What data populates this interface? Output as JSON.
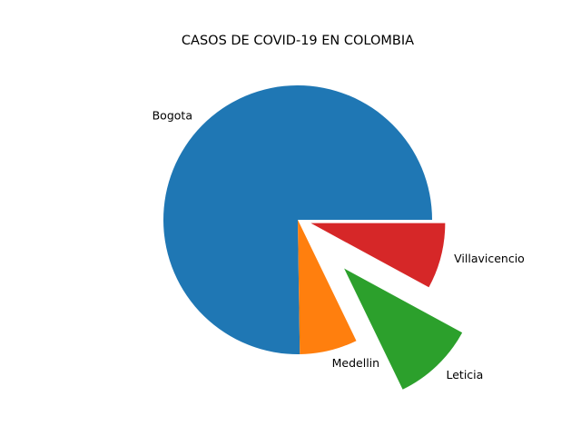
{
  "chart_data": {
    "type": "pie",
    "title": "CASOS DE COVID-19 EN COLOMBIA",
    "start_angle_deg": 0,
    "direction": "counterclockwise",
    "slices": [
      {
        "label": "Bogota",
        "value": 7600,
        "color": "#1f77b4",
        "explode": 0.0
      },
      {
        "label": "Medellin",
        "value": 700,
        "color": "#ff7f0e",
        "explode": 0.0
      },
      {
        "label": "Leticia",
        "value": 1000,
        "color": "#2ca02c",
        "explode": 0.5
      },
      {
        "label": "Villavicencio",
        "value": 800,
        "color": "#d62728",
        "explode": 0.1
      }
    ]
  }
}
